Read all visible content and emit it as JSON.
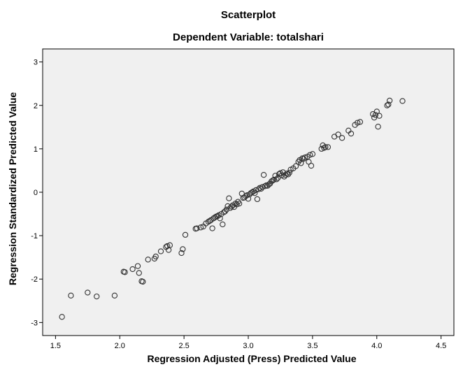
{
  "chart_data": {
    "type": "scatter",
    "title": "Scatterplot",
    "subtitle": "Dependent Variable: totalshari",
    "xlabel": "Regression Adjusted (Press) Predicted Value",
    "ylabel": "Regression Standardized Predicted Value",
    "xlim": [
      1.4,
      4.6
    ],
    "ylim": [
      -3.3,
      3.3
    ],
    "xticks": [
      "1.5",
      "2.0",
      "2.5",
      "3.0",
      "3.5",
      "4.0",
      "4.5"
    ],
    "yticks": [
      "-3",
      "-2",
      "-1",
      "0",
      "1",
      "2",
      "3"
    ],
    "grid": false,
    "colors": {
      "plot_background": "#F0F0F0",
      "marker_stroke": "#333333"
    },
    "points": [
      [
        1.55,
        -2.87
      ],
      [
        1.62,
        -2.38
      ],
      [
        1.75,
        -2.31
      ],
      [
        1.82,
        -2.4
      ],
      [
        1.96,
        -2.38
      ],
      [
        2.03,
        -1.83
      ],
      [
        2.04,
        -1.84
      ],
      [
        2.1,
        -1.77
      ],
      [
        2.14,
        -1.7
      ],
      [
        2.15,
        -1.86
      ],
      [
        2.17,
        -2.05
      ],
      [
        2.18,
        -2.06
      ],
      [
        2.22,
        -1.55
      ],
      [
        2.27,
        -1.53
      ],
      [
        2.28,
        -1.48
      ],
      [
        2.32,
        -1.36
      ],
      [
        2.36,
        -1.26
      ],
      [
        2.37,
        -1.24
      ],
      [
        2.38,
        -1.33
      ],
      [
        2.39,
        -1.22
      ],
      [
        2.48,
        -1.4
      ],
      [
        2.49,
        -1.31
      ],
      [
        2.51,
        -0.98
      ],
      [
        2.59,
        -0.84
      ],
      [
        2.6,
        -0.83
      ],
      [
        2.63,
        -0.81
      ],
      [
        2.65,
        -0.79
      ],
      [
        2.67,
        -0.72
      ],
      [
        2.69,
        -0.68
      ],
      [
        2.7,
        -0.66
      ],
      [
        2.71,
        -0.64
      ],
      [
        2.72,
        -0.83
      ],
      [
        2.73,
        -0.6
      ],
      [
        2.74,
        -0.58
      ],
      [
        2.75,
        -0.56
      ],
      [
        2.76,
        -0.55
      ],
      [
        2.77,
        -0.53
      ],
      [
        2.78,
        -0.6
      ],
      [
        2.79,
        -0.5
      ],
      [
        2.8,
        -0.74
      ],
      [
        2.81,
        -0.46
      ],
      [
        2.82,
        -0.44
      ],
      [
        2.83,
        -0.4
      ],
      [
        2.84,
        -0.32
      ],
      [
        2.85,
        -0.14
      ],
      [
        2.86,
        -0.36
      ],
      [
        2.87,
        -0.33
      ],
      [
        2.88,
        -0.3
      ],
      [
        2.89,
        -0.34
      ],
      [
        2.9,
        -0.26
      ],
      [
        2.91,
        -0.28
      ],
      [
        2.92,
        -0.22
      ],
      [
        2.93,
        -0.26
      ],
      [
        2.95,
        -0.03
      ],
      [
        2.96,
        -0.13
      ],
      [
        2.97,
        -0.12
      ],
      [
        2.98,
        -0.09
      ],
      [
        2.99,
        -0.07
      ],
      [
        3.0,
        -0.15
      ],
      [
        3.01,
        -0.05
      ],
      [
        3.02,
        -0.02
      ],
      [
        3.03,
        0.0
      ],
      [
        3.04,
        0.02
      ],
      [
        3.05,
        -0.02
      ],
      [
        3.06,
        0.05
      ],
      [
        3.07,
        -0.16
      ],
      [
        3.08,
        0.07
      ],
      [
        3.09,
        0.1
      ],
      [
        3.1,
        0.08
      ],
      [
        3.11,
        0.12
      ],
      [
        3.12,
        0.4
      ],
      [
        3.13,
        0.14
      ],
      [
        3.14,
        0.16
      ],
      [
        3.15,
        0.15
      ],
      [
        3.16,
        0.18
      ],
      [
        3.17,
        0.2
      ],
      [
        3.18,
        0.25
      ],
      [
        3.19,
        0.27
      ],
      [
        3.2,
        0.29
      ],
      [
        3.21,
        0.38
      ],
      [
        3.22,
        0.3
      ],
      [
        3.23,
        0.33
      ],
      [
        3.24,
        0.42
      ],
      [
        3.25,
        0.44
      ],
      [
        3.26,
        0.39
      ],
      [
        3.27,
        0.46
      ],
      [
        3.28,
        0.36
      ],
      [
        3.29,
        0.4
      ],
      [
        3.3,
        0.43
      ],
      [
        3.31,
        0.41
      ],
      [
        3.32,
        0.45
      ],
      [
        3.33,
        0.52
      ],
      [
        3.35,
        0.55
      ],
      [
        3.37,
        0.6
      ],
      [
        3.39,
        0.7
      ],
      [
        3.4,
        0.74
      ],
      [
        3.41,
        0.67
      ],
      [
        3.42,
        0.78
      ],
      [
        3.43,
        0.77
      ],
      [
        3.44,
        0.8
      ],
      [
        3.46,
        0.82
      ],
      [
        3.47,
        0.7
      ],
      [
        3.48,
        0.86
      ],
      [
        3.49,
        0.61
      ],
      [
        3.5,
        0.88
      ],
      [
        3.57,
        1.0
      ],
      [
        3.58,
        1.08
      ],
      [
        3.59,
        1.02
      ],
      [
        3.6,
        1.04
      ],
      [
        3.62,
        1.04
      ],
      [
        3.67,
        1.28
      ],
      [
        3.7,
        1.33
      ],
      [
        3.73,
        1.25
      ],
      [
        3.78,
        1.42
      ],
      [
        3.8,
        1.35
      ],
      [
        3.83,
        1.55
      ],
      [
        3.85,
        1.6
      ],
      [
        3.87,
        1.62
      ],
      [
        3.97,
        1.8
      ],
      [
        3.98,
        1.72
      ],
      [
        3.99,
        1.78
      ],
      [
        4.0,
        1.86
      ],
      [
        4.01,
        1.51
      ],
      [
        4.02,
        1.76
      ],
      [
        4.08,
        2.0
      ],
      [
        4.09,
        2.02
      ],
      [
        4.1,
        2.11
      ],
      [
        4.2,
        2.1
      ]
    ]
  }
}
